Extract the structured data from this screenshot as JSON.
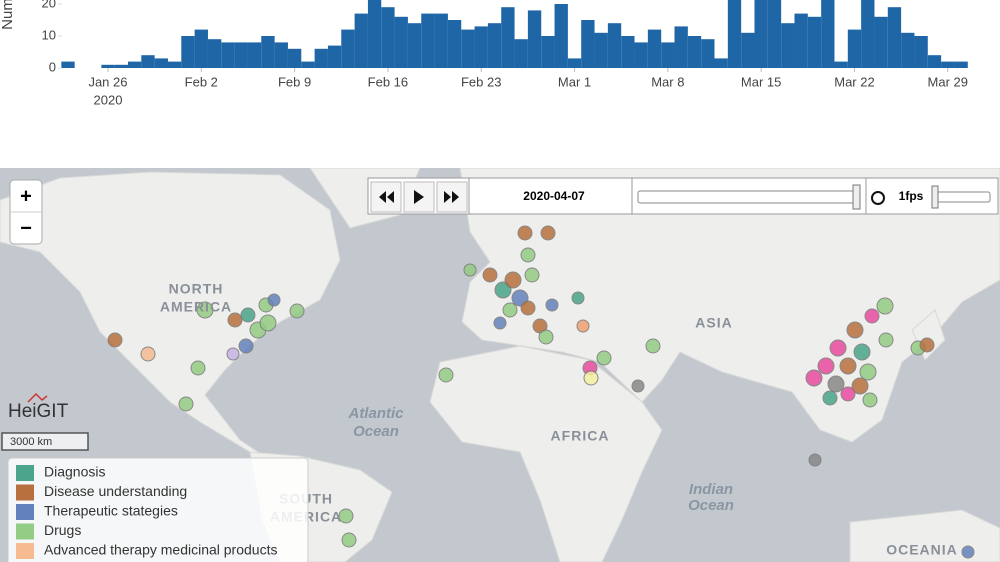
{
  "chart_data": {
    "type": "bar",
    "y_label": "Num",
    "color": "#1f66a6",
    "categories": [
      "2020-01-23",
      "2020-01-24",
      "2020-01-25",
      "2020-01-26",
      "2020-01-27",
      "2020-01-28",
      "2020-01-29",
      "2020-01-30",
      "2020-01-31",
      "2020-02-01",
      "2020-02-02",
      "2020-02-03",
      "2020-02-04",
      "2020-02-05",
      "2020-02-06",
      "2020-02-07",
      "2020-02-08",
      "2020-02-09",
      "2020-02-10",
      "2020-02-11",
      "2020-02-12",
      "2020-02-13",
      "2020-02-14",
      "2020-02-15",
      "2020-02-16",
      "2020-02-17",
      "2020-02-18",
      "2020-02-19",
      "2020-02-20",
      "2020-02-21",
      "2020-02-22",
      "2020-02-23",
      "2020-02-24",
      "2020-02-25",
      "2020-02-26",
      "2020-02-27",
      "2020-02-28",
      "2020-02-29",
      "2020-03-01",
      "2020-03-02",
      "2020-03-03",
      "2020-03-04",
      "2020-03-05",
      "2020-03-06",
      "2020-03-07",
      "2020-03-08",
      "2020-03-09",
      "2020-03-10",
      "2020-03-11",
      "2020-03-12",
      "2020-03-13",
      "2020-03-14",
      "2020-03-15",
      "2020-03-16",
      "2020-03-17",
      "2020-03-18",
      "2020-03-19",
      "2020-03-20",
      "2020-03-21",
      "2020-03-22",
      "2020-03-23",
      "2020-03-24",
      "2020-03-25",
      "2020-03-26",
      "2020-03-27",
      "2020-03-28",
      "2020-03-29",
      "2020-03-30"
    ],
    "values": [
      2,
      0,
      0,
      1,
      1,
      2,
      4,
      3,
      2,
      10,
      12,
      9,
      8,
      8,
      8,
      10,
      8,
      6,
      2,
      6,
      7,
      12,
      17,
      22,
      19,
      16,
      14,
      17,
      17,
      15,
      12,
      13,
      14,
      19,
      9,
      18,
      10,
      20,
      3,
      15,
      11,
      14,
      10,
      8,
      12,
      8,
      13,
      10,
      9,
      3,
      25,
      11,
      25,
      25,
      14,
      17,
      16,
      25,
      2,
      12,
      25,
      16,
      19,
      11,
      10,
      4,
      2,
      2
    ],
    "ylim": [
      0,
      21.25
    ],
    "yticks": [
      0,
      10,
      20
    ],
    "xticks": [
      {
        "value": "2020-01-26",
        "label": "Jan 26"
      },
      {
        "value": "2020-02-02",
        "label": "Feb 2"
      },
      {
        "value": "2020-02-09",
        "label": "Feb 9"
      },
      {
        "value": "2020-02-16",
        "label": "Feb 16"
      },
      {
        "value": "2020-02-23",
        "label": "Feb 23"
      },
      {
        "value": "2020-03-01",
        "label": "Mar 1"
      },
      {
        "value": "2020-03-08",
        "label": "Mar 8"
      },
      {
        "value": "2020-03-15",
        "label": "Mar 15"
      },
      {
        "value": "2020-03-22",
        "label": "Mar 22"
      },
      {
        "value": "2020-03-29",
        "label": "Mar 29"
      }
    ],
    "xtick_year": "2020"
  },
  "map": {
    "date": "2020-04-07",
    "speed": "1fps",
    "zoom_in": "+",
    "zoom_out": "−",
    "logo": "HeiGIT",
    "scale": "3000 km",
    "labels": {
      "north_america": [
        "NORTH",
        "AMERICA"
      ],
      "south_america": [
        "SOUTH",
        "AMERICA"
      ],
      "atlantic": [
        "Atlantic",
        "Ocean"
      ],
      "indian": [
        "Indian",
        "Ocean"
      ],
      "africa": "AFRICA",
      "asia": "ASIA",
      "oceania": "OCEANIA"
    },
    "legend": [
      {
        "name": "Diagnosis",
        "color": "#4aa58a"
      },
      {
        "name": "Disease understanding",
        "color": "#b8703e"
      },
      {
        "name": "Therapeutic stategies",
        "color": "#6382bd"
      },
      {
        "name": "Drugs",
        "color": "#93cc84"
      },
      {
        "name": "Advanced therapy medicinal products",
        "color": "#f7bb92"
      }
    ]
  }
}
